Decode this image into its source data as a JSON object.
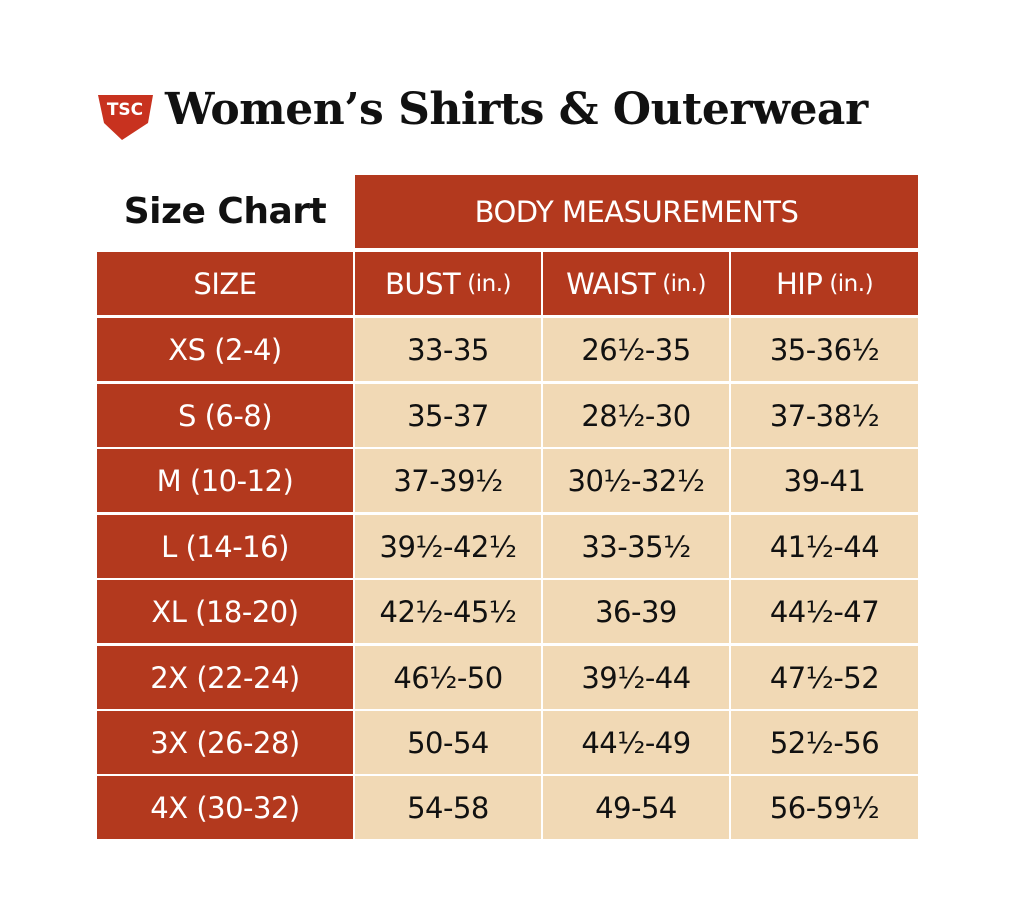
{
  "header": {
    "logo": "TSC",
    "title": "Women’s Shirts & Outerwear"
  },
  "table": {
    "corner": "Size Chart",
    "group": "BODY MEASUREMENTS",
    "columns": [
      {
        "label": "SIZE"
      },
      {
        "label": "BUST",
        "unit": "(in.)"
      },
      {
        "label": "WAIST",
        "unit": "(in.)"
      },
      {
        "label": "HIP",
        "unit": "(in.)"
      }
    ],
    "rows": [
      [
        "XS (2-4)",
        "33-35",
        "26½-35",
        "35-36½"
      ],
      [
        "S (6-8)",
        "35-37",
        "28½-30",
        "37-38½"
      ],
      [
        "M (10-12)",
        "37-39½",
        "30½-32½",
        "39-41"
      ],
      [
        "L (14-16)",
        "39½-42½",
        "33-35½",
        "41½-44"
      ],
      [
        "XL (18-20)",
        "42½-45½",
        "36-39",
        "44½-47"
      ],
      [
        "2X (22-24)",
        "46½-50",
        "39½-44",
        "47½-52"
      ],
      [
        "3X (26-28)",
        "50-54",
        "44½-49",
        "52½-56"
      ],
      [
        "4X (30-32)",
        "54-58",
        "49-54",
        "56-59½"
      ]
    ]
  }
}
